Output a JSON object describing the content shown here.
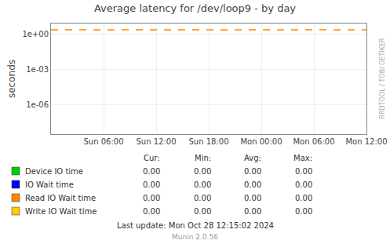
{
  "chart_data": {
    "type": "line",
    "title": "Average latency for /dev/loop9 - by day",
    "ylabel": "seconds",
    "log": "y",
    "grid": true,
    "categories": [
      null,
      "Sun 06:00",
      "Sun 12:00",
      "Sun 18:00",
      "Mon 00:00",
      "Mon 06:00",
      "Mon 12:00"
    ],
    "ylim": [
      3e-09,
      8.0
    ],
    "yticks": [
      {
        "value": 1e-06,
        "label": "1e-06"
      },
      {
        "value": 0.001,
        "label": "1e-03"
      },
      {
        "value": 1,
        "label": "1e+00"
      }
    ],
    "hline": {
      "y": 2.3,
      "color": "#ff8800",
      "line_style": "dashed"
    },
    "stat_names": [
      "Cur:",
      "Min:",
      "Avg:",
      "Max:"
    ],
    "series": [
      {
        "name": "Device IO time",
        "color": "#00cc00",
        "stats": [
          0,
          0,
          0,
          0
        ],
        "stat_labels": [
          "0.00",
          "0.00",
          "0.00",
          "0.00"
        ]
      },
      {
        "name": "IO Wait time",
        "color": "#0000ff",
        "stats": [
          0,
          0,
          0,
          0
        ],
        "stat_labels": [
          "0.00",
          "0.00",
          "0.00",
          "0.00"
        ]
      },
      {
        "name": "Read IO Wait time",
        "color": "#ff8800",
        "stats": [
          0,
          0,
          0,
          0
        ],
        "stat_labels": [
          "0.00",
          "0.00",
          "0.00",
          "0.00"
        ]
      },
      {
        "name": "Write IO Wait time",
        "color": "#ffcc00",
        "stats": [
          0,
          0,
          0,
          0
        ],
        "stat_labels": [
          "0.00",
          "0.00",
          "0.00",
          "0.00"
        ]
      }
    ],
    "watermark": "RRDTOOL / TOBI OETIKER",
    "footer": [
      "Last update: Mon Oct 28 12:15:02 2024",
      "Munin 2.0.56"
    ]
  }
}
